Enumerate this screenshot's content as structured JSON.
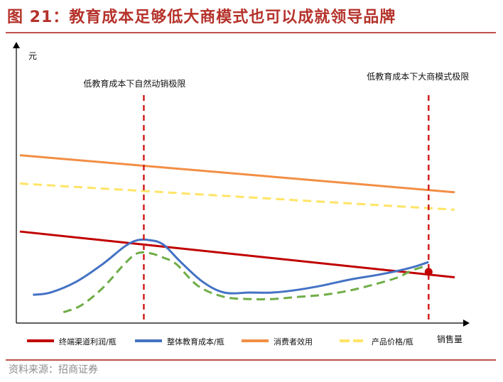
{
  "figure": {
    "title": "图 21：教育成本足够低大商模式也可以成就领导品牌",
    "source": "资料来源：招商证券"
  },
  "chart_data": {
    "type": "line",
    "xlabel": "销售量",
    "ylabel": "元",
    "xlim": [
      0,
      100
    ],
    "ylim": [
      0,
      100
    ],
    "tick_labels": false,
    "series": [
      {
        "name": "终端渠道利润/瓶",
        "color": "#c00000",
        "dash": "solid",
        "x": [
          0,
          100
        ],
        "y": [
          42,
          21
        ]
      },
      {
        "name": "整体教育成本/瓶",
        "color": "#4472c4",
        "dash": "solid",
        "x": [
          3,
          7,
          13,
          19,
          24,
          27,
          30,
          33,
          37,
          42,
          47,
          53,
          58,
          63,
          69,
          76,
          82,
          87,
          91,
          94
        ],
        "y": [
          13,
          14,
          19,
          27,
          35,
          38,
          38,
          36,
          28,
          19,
          14,
          14,
          14,
          15,
          17,
          20,
          22,
          24,
          26,
          28
        ]
      },
      {
        "name": "消费者效用",
        "color": "#f28e45",
        "dash": "solid",
        "x": [
          0,
          100
        ],
        "y": [
          77,
          60
        ]
      },
      {
        "name": "产品价格/瓶",
        "color": "#ffe466",
        "dash": "dashed",
        "x": [
          0,
          100
        ],
        "y": [
          64,
          52
        ]
      },
      {
        "name": "",
        "color": "#70ad47",
        "dash": "dashed",
        "x": [
          10,
          14,
          19,
          24,
          27,
          30,
          33,
          36,
          41,
          47,
          53,
          58,
          64,
          70,
          76,
          82,
          87,
          90,
          93
        ],
        "y": [
          5,
          8,
          16,
          27,
          32,
          32,
          30,
          27,
          17,
          12,
          11,
          11,
          12,
          13,
          15,
          18,
          21,
          24,
          26
        ]
      }
    ],
    "annotations": [
      {
        "text": "低教育成本下自然动销极限",
        "x": 28.5
      },
      {
        "text": "低教育成本下大商模式极限",
        "x": 94
      }
    ],
    "markers": [
      {
        "x": 94,
        "y": 23.5,
        "color": "#c00000"
      }
    ],
    "legend_position": "bottom"
  }
}
